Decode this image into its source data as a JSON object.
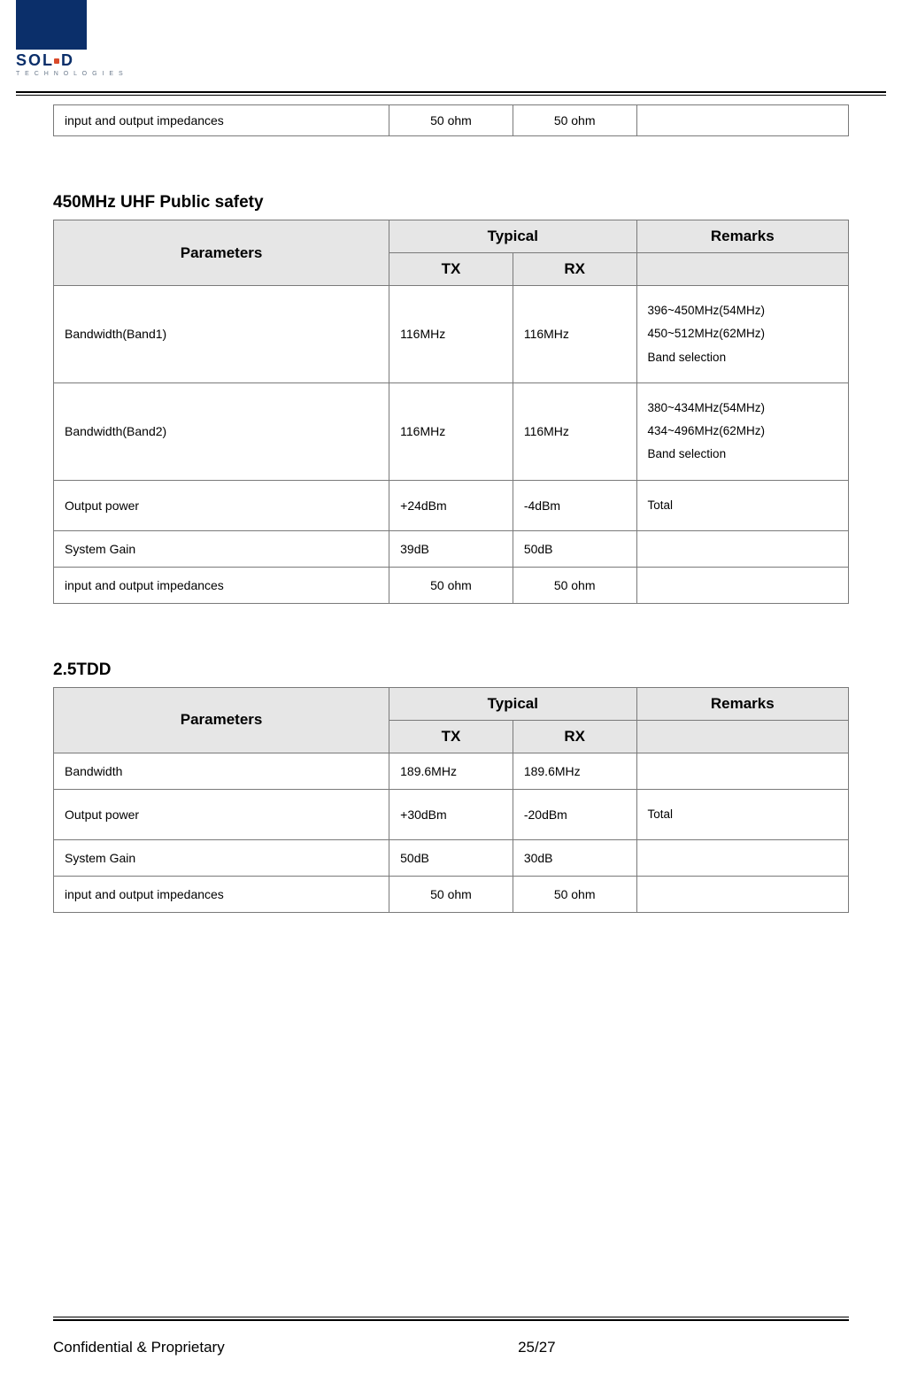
{
  "brand": {
    "letters": [
      "S",
      "O",
      "L",
      "D"
    ],
    "dot_color": "#d94a2a",
    "square_color": "#0b2f6a",
    "sub": "T E C H N O L O G I E S"
  },
  "top_row": {
    "param": "input and output impedances",
    "tx": "50 ohm",
    "rx": "50 ohm",
    "remark": ""
  },
  "section1": {
    "title": "450MHz UHF Public safety",
    "headers": {
      "parameters": "Parameters",
      "typical": "Typical",
      "tx": "TX",
      "rx": "RX",
      "remarks": "Remarks"
    },
    "rows": [
      {
        "param": "Bandwidth(Band1)",
        "tx": "116MHz",
        "rx": "116MHz",
        "remark": [
          "396~450MHz(54MHz)",
          "450~512MHz(62MHz)",
          "Band selection"
        ]
      },
      {
        "param": "Bandwidth(Band2)",
        "tx": "116MHz",
        "rx": "116MHz",
        "remark": [
          "380~434MHz(54MHz)",
          "434~496MHz(62MHz)",
          "Band selection"
        ]
      },
      {
        "param": "Output power",
        "tx": "+24dBm",
        "rx": "-4dBm",
        "remark": [
          "Total"
        ]
      },
      {
        "param": "System Gain",
        "tx": "39dB",
        "rx": "50dB",
        "remark": [
          ""
        ]
      },
      {
        "param": "input and output impedances",
        "tx": "50 ohm",
        "rx": "50 ohm",
        "remark": [
          ""
        ],
        "center_vals": true
      }
    ]
  },
  "section2": {
    "title": "2.5TDD",
    "headers": {
      "parameters": "Parameters",
      "typical": "Typical",
      "tx": "TX",
      "rx": "RX",
      "remarks": "Remarks"
    },
    "rows": [
      {
        "param": "Bandwidth",
        "tx": "189.6MHz",
        "rx": "189.6MHz",
        "remark": [
          ""
        ]
      },
      {
        "param": "Output power",
        "tx": "+30dBm",
        "rx": "-20dBm",
        "remark": [
          "Total"
        ]
      },
      {
        "param": "System Gain",
        "tx": "50dB",
        "rx": "30dB",
        "remark": [
          ""
        ]
      },
      {
        "param": "input and output impedances",
        "tx": "50 ohm",
        "rx": "50 ohm",
        "remark": [
          ""
        ],
        "center_vals": true
      }
    ]
  },
  "footer": {
    "left": "Confidential & Proprietary",
    "center": "25/27"
  },
  "colors": {
    "header_bg": "#e6e6e6",
    "border": "#7a7a7a",
    "text": "#000000"
  }
}
